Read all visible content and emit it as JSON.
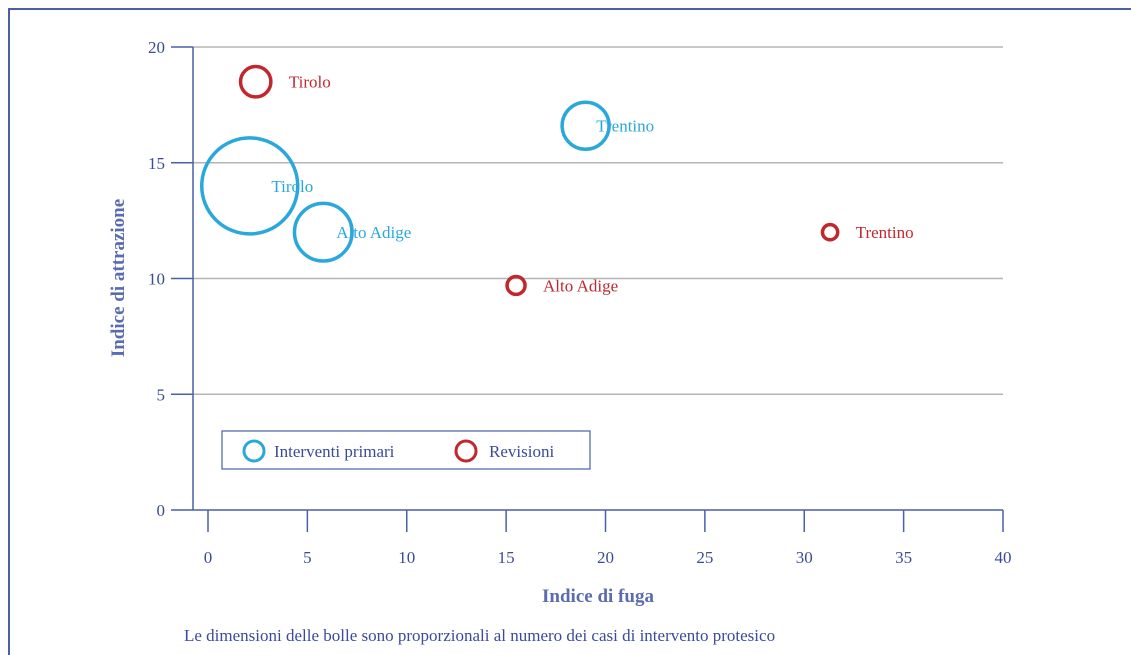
{
  "chart_data": {
    "type": "scatter",
    "variant": "bubble",
    "xlabel": "Indice di fuga",
    "ylabel": "Indice di attrazione",
    "xlim": [
      0,
      40
    ],
    "ylim": [
      0,
      20
    ],
    "xticks": [
      0,
      5,
      10,
      15,
      20,
      25,
      30,
      35,
      40
    ],
    "yticks": [
      0,
      5,
      10,
      15,
      20
    ],
    "grid": "horizontal",
    "legend_position": "bottom-left",
    "note": "Le dimensioni delle bolle sono proporzionali al numero dei casi di intervento protesico",
    "series": [
      {
        "name": "Interventi primari",
        "color": "#2aa8dc",
        "points": [
          {
            "label": "Tirolo",
            "x": 2.1,
            "y": 14.0,
            "size": 100
          },
          {
            "label": "Alto Adige",
            "x": 5.8,
            "y": 12.0,
            "size": 36
          },
          {
            "label": "Trentino",
            "x": 19.0,
            "y": 16.6,
            "size": 24
          }
        ]
      },
      {
        "name": "Revisioni",
        "color": "#c0282d",
        "points": [
          {
            "label": "Tirolo",
            "x": 2.4,
            "y": 18.5,
            "size": 10
          },
          {
            "label": "Alto Adige",
            "x": 15.5,
            "y": 9.7,
            "size": 3.5
          },
          {
            "label": "Trentino",
            "x": 31.3,
            "y": 12.0,
            "size": 2.5
          }
        ]
      }
    ]
  }
}
